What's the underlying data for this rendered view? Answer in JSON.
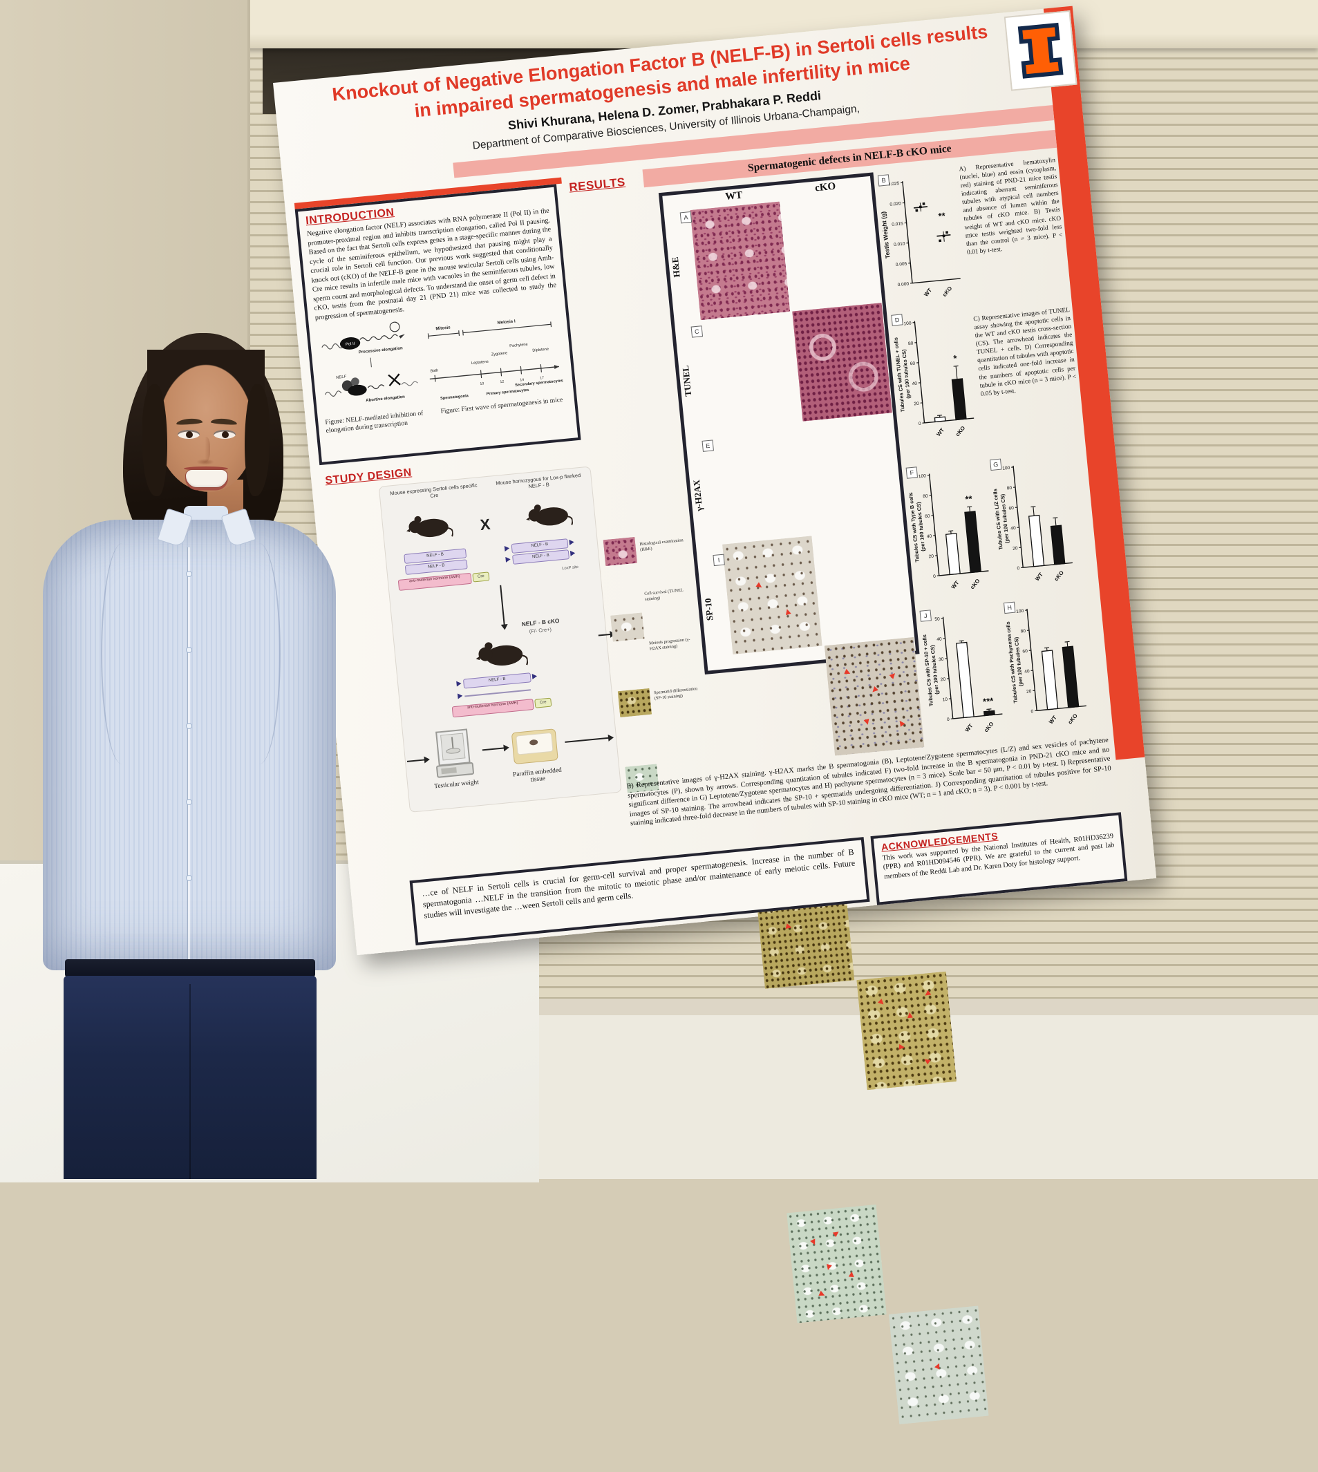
{
  "poster": {
    "logo_i": "I",
    "title": "Knockout of Negative Elongation Factor B (NELF-B) in Sertoli cells results in impaired spermatogenesis and male infertility in mice",
    "authors": "Shivi Khurana, Helena D. Zomer, Prabhakara P. Reddi",
    "affiliation": "Department of Comparative Biosciences, University of Illinois Urbana-Champaign,",
    "colors": {
      "poster_red": "#e03a28",
      "heading_red": "#c42220",
      "banner_pink": "#f2aba3",
      "illinois_orange": "#ff5f05",
      "illinois_blue": "#13294b"
    },
    "intro": {
      "heading": "INTRODUCTION",
      "body": "Negative elongation factor (NELF) associates with RNA polymerase II (Pol II) in the promoter-proximal region and inhibits transcription elongation, called Pol II pausing. Based on the fact that Sertoli cells express genes in a stage-specific manner during the cycle of the seminiferous epithelium, we hypothesized that pausing might play a crucial role in Sertoli cell function. Our previous work suggested that conditionally knock out (cKO) of the NELF-B gene in the mouse testicular Sertoli cells using Amh-Cre mice results in infertile male mice with vacuoles in the seminiferous tubules, low sperm count and morphological defects. To understand the onset of germ cell defect in cKO, testis from the postnatal day 21 (PND 21) mice was collected to study the progression of spermatogenesis.",
      "fig1_caption": "Figure: NELF-mediated inhibition of elongation during transcription",
      "fig2_caption": "Figure: First wave of spermatogenesis in mice",
      "elongation": {
        "pol2": "Pol II",
        "nelf": "NELF",
        "processive": "Processive elongation",
        "abortive": "Abortive elongation"
      },
      "timeline": {
        "top_labels": [
          "Mitosis",
          "Meiosis I"
        ],
        "stage_labels": [
          "Leptotene",
          "Zygotene",
          "Pachytene",
          "Diplotene"
        ],
        "bottom_labels": [
          "Birth",
          "Spermatogonia",
          "Primary spermatocytes",
          "Secondary spermatocytes"
        ],
        "day_ticks": [
          "10",
          "12",
          "14",
          "17"
        ]
      }
    },
    "study": {
      "heading": "STUDY DESIGN",
      "mouse_left_label": "Mouse expressing Sertoli cells specific Cre",
      "mouse_right_label": "Mouse homozygous for Lox-p flanked NELF - B",
      "cross": "X",
      "gene_nelfb": "NELF - B",
      "gene_amh": "anti-mullerian hormone (AMH)",
      "gene_cre": "Cre",
      "loxp": "LoxP site",
      "cko_label_1": "NELF - B cKO",
      "cko_label_2": "(F/- Cre+)",
      "flow_weight": "Testicular weight",
      "flow_paraffin": "Paraffin embedded tissue",
      "steps": [
        "Histological examination (H&E)",
        "Cell survival (TUNEL staining)",
        "Meiosis progression (γ-H2AX staining)",
        "Spermatid differentiation (SP-10 staining)"
      ]
    },
    "results": {
      "heading": "RESULTS",
      "banner": "Spermatogenic defects in NELF-B cKO mice",
      "col_wt": "WT",
      "col_cko": "cKO",
      "rows": [
        "H&E",
        "TUNEL",
        "γ-H2AX",
        "SP-10"
      ],
      "letters": [
        "A",
        "C",
        "E",
        "I"
      ]
    },
    "right_text": {
      "para_ab": "A) Representative hematoxylin (nuclei, blue) and eosin (cytoplasm, red) staining of PND-21 mice testis indicating aberrant seminiferous tubules with atypical cell numbers and absence of lumen within the tubules of cKO mice. B) Testis weight of WT and cKO mice. cKO mice testis weighted two-fold less than the control (n = 3 mice). P < 0.01 by t-test.",
      "para_cd": "C) Representative images of TUNEL assay showing the apoptotic cells in the WT and cKO testis cross-section (CS). The arrowhead indicates the TUNEL + cells. D) Corresponding quantitation of tubules with apoptotic cells indicated one-fold increase in the numbers of apoptotic cells per tubule in cKO mice (n = 3 mice). P < 0.05 by t-test."
    },
    "caption_e": "E) Representative images of γ-H2AX staining. γ-H2AX marks the B spermatogonia (B), Leptotene/Zygotene spermatocytes (L/Z) and sex vesicles of pachytene spermatocytes (P), shown by arrows. Corresponding quantitation of tubules indicated F) two-fold increase in the B spermatogonia in PND-21 cKO mice and no significant difference in G) Leptotene/Zygotene spermatocytes and H) pachytene spermatocytes (n = 3 mice). Scale bar = 50 μm, P < 0.01 by t-test. I) Representative images of SP-10 staining. The arrowhead indicates the SP-10 + spermatids undergoing differentiation. J) Corresponding quantitation of tubules positive for SP-10 staining indicated three-fold decrease in the numbers of tubules with SP-10 staining in cKO mice (WT; n = 1 and cKO; n = 3). P < 0.001 by t-test.",
    "conclusion": {
      "body": "…ce of NELF in Sertoli cells is crucial for germ-cell survival and proper spermatogenesis. Increase in the number of B spermatogonia …NELF in the transition from the mitotic to meiotic phase and/or maintenance of early meiotic cells. Future studies will investigate the …ween Sertoli cells and germ cells."
    },
    "ack": {
      "heading": "ACKNOWLEDGEMENTS",
      "body": "This work was supported by the National Institutes of Health, R01HD36239 (PPR) and R01HD094546 (PPR). We are grateful to the current and past lab members of the Reddi Lab and Dr. Karen Doty for histology support."
    }
  },
  "chart_data": [
    {
      "panel": "B",
      "type": "scatter",
      "title": "",
      "ylabel": "Testis Weight (g)",
      "xlabel": "",
      "categories": [
        "WT",
        "cKO"
      ],
      "values": [
        0.0185,
        0.011
      ],
      "points": [
        [
          0.0178,
          0.0186,
          0.0193
        ],
        [
          0.0098,
          0.0109,
          0.0117
        ]
      ],
      "ylim": [
        0,
        0.025
      ],
      "ytick_vals": [
        0,
        0.005,
        0.01,
        0.015,
        0.02,
        0.025
      ],
      "ytick_labels": [
        "0.000",
        "0.005",
        "0.010",
        "0.015",
        "0.020",
        "0.025"
      ],
      "sig": "**",
      "legend": "none",
      "grid": false
    },
    {
      "panel": "D",
      "type": "bar",
      "ylabel": "Tubules CS with TUNEL + cells|(per 100 tubules CS)",
      "categories": [
        "WT",
        "cKO"
      ],
      "values": [
        4,
        40
      ],
      "errors": [
        2,
        13
      ],
      "ylim": [
        0,
        100
      ],
      "ytick_vals": [
        0,
        20,
        40,
        60,
        80,
        100
      ],
      "ytick_labels": [
        "0",
        "20",
        "40",
        "60",
        "80",
        "100"
      ],
      "sig": "*",
      "grid": false
    },
    {
      "panel": "F",
      "type": "bar",
      "ylabel": "Tubules CS with Type B cells|(per 100 tubules CS)",
      "categories": [
        "WT",
        "cKO"
      ],
      "values": [
        40,
        60
      ],
      "errors": [
        3,
        5
      ],
      "ylim": [
        0,
        100
      ],
      "ytick_vals": [
        0,
        20,
        40,
        60,
        80,
        100
      ],
      "ytick_labels": [
        "0",
        "20",
        "40",
        "60",
        "80",
        "100"
      ],
      "sig": "**",
      "grid": false
    },
    {
      "panel": "G",
      "type": "bar",
      "ylabel": "Tubules CS with L/Z cells|(per 100 tubules CS)",
      "categories": [
        "WT",
        "cKO"
      ],
      "values": [
        50,
        38
      ],
      "errors": [
        9,
        8
      ],
      "ylim": [
        0,
        100
      ],
      "ytick_vals": [
        0,
        20,
        40,
        60,
        80,
        100
      ],
      "ytick_labels": [
        "0",
        "20",
        "40",
        "60",
        "80",
        "100"
      ],
      "sig": "",
      "grid": false
    },
    {
      "panel": "J",
      "type": "bar",
      "ylabel": "Tubules CS with SP-10 + cells|(per 100 tubules CS)",
      "categories": [
        "WT",
        "cKO"
      ],
      "values": [
        37,
        2
      ],
      "errors": [
        1,
        1
      ],
      "ylim": [
        0,
        50
      ],
      "ytick_vals": [
        0,
        10,
        20,
        30,
        40,
        50
      ],
      "ytick_labels": [
        "0",
        "10",
        "20",
        "30",
        "40",
        "50"
      ],
      "sig": "***",
      "grid": false
    },
    {
      "panel": "H",
      "type": "bar",
      "ylabel": "Tubules CS with Pachynema cells|(per 100 tubules CS)",
      "categories": [
        "WT",
        "cKO"
      ],
      "values": [
        58,
        60
      ],
      "errors": [
        3,
        5
      ],
      "ylim": [
        0,
        100
      ],
      "ytick_vals": [
        0,
        20,
        40,
        60,
        80,
        100
      ],
      "ytick_labels": [
        "0",
        "20",
        "40",
        "60",
        "80",
        "100"
      ],
      "sig": "",
      "grid": false
    }
  ]
}
